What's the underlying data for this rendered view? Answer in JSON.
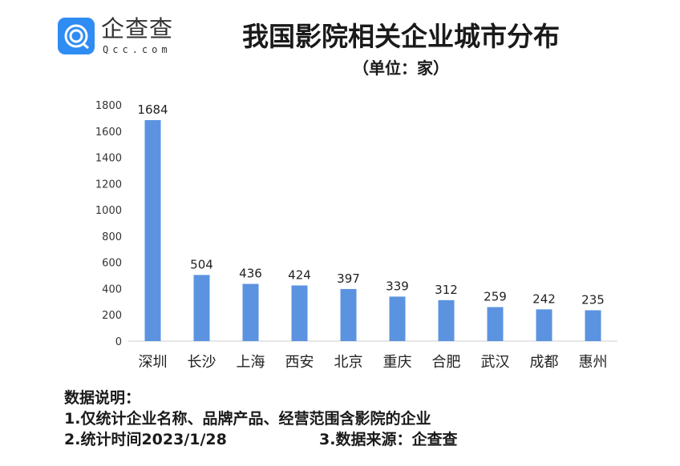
{
  "logo": {
    "name_cn": "企查查",
    "name_en": "Qcc.com"
  },
  "chart_data": {
    "type": "bar",
    "title": "我国影院相关企业城市分布",
    "subtitle": "（单位：家）",
    "categories": [
      "深圳",
      "长沙",
      "上海",
      "西安",
      "北京",
      "重庆",
      "合肥",
      "武汉",
      "成都",
      "惠州"
    ],
    "values": [
      1684,
      504,
      436,
      424,
      397,
      339,
      312,
      259,
      242,
      235
    ],
    "ylim": [
      0,
      1800
    ],
    "yticks": [
      0,
      200,
      400,
      600,
      800,
      1000,
      1200,
      1400,
      1600,
      1800
    ],
    "xlabel": "",
    "ylabel": "",
    "bar_color": "#5b93e0",
    "grid": false
  },
  "notes": {
    "heading": "数据说明：",
    "line1": "1.仅统计企业名称、品牌产品、经营范围含影院的企业",
    "line2": "2.统计时间2023/1/28",
    "line3": "3.数据来源：企查查"
  }
}
